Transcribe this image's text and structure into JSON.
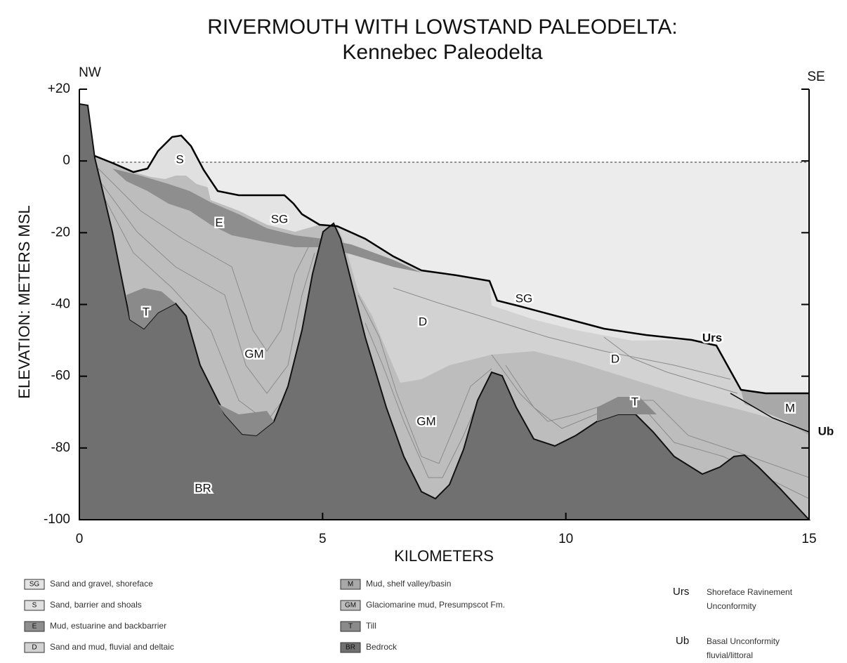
{
  "title": [
    "RIVERMOUTH WITH LOWSTAND PALEODELTA:",
    "Kennebec Paleodelta"
  ],
  "y_axis": {
    "label": "ELEVATION: METERS MSL",
    "ticks": [
      "+20",
      "0",
      "-20",
      "-40",
      "-60",
      "-80",
      "-100"
    ]
  },
  "x_axis": {
    "label": "KILOMETERS",
    "ticks": [
      "0",
      "5",
      "10",
      "15"
    ]
  },
  "ends": {
    "left": "NW",
    "right": "SE"
  },
  "section_labels": [
    "S",
    "SG",
    "E",
    "SG",
    "D",
    "D",
    "GM",
    "GM",
    "T",
    "T",
    "BR",
    "M",
    "Urs",
    "Ub"
  ],
  "legend": [
    {
      "code": "SG",
      "label": "Sand and gravel, shoreface"
    },
    {
      "code": "S",
      "label": "Sand, barrier and shoals"
    },
    {
      "code": "E",
      "label": "Mud, estuarine and backbarrier"
    },
    {
      "code": "D",
      "label": "Sand and mud, fluvial and deltaic"
    },
    {
      "code": "M",
      "label": "Mud, shelf valley/basin"
    },
    {
      "code": "GM",
      "label": "Glaciomarine mud, Presumpscot Fm."
    },
    {
      "code": "T",
      "label": "Till"
    },
    {
      "code": "BR",
      "label": "Bedrock"
    }
  ],
  "surfaces": [
    {
      "code": "Urs",
      "label": [
        "Shoreface Ravinement",
        "Unconformity"
      ]
    },
    {
      "code": "Ub",
      "label": [
        "Basal Unconformity",
        "fluvial/littoral"
      ]
    }
  ]
}
